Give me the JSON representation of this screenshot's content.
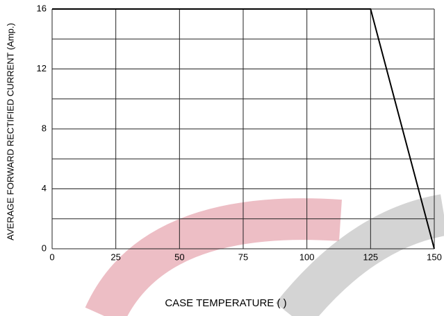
{
  "chart_data": {
    "type": "line",
    "x_label": "CASE TEMPERATURE (   )",
    "y_label": "AVERAGE FORWARD RECTIFIED CURRENT (Amp.)",
    "x": [
      0,
      125,
      150
    ],
    "series": [
      {
        "color": "#000000",
        "values": [
          16,
          16,
          0
        ]
      }
    ],
    "xlim": [
      0,
      150
    ],
    "xticks": [
      0,
      25,
      50,
      75,
      100,
      125,
      150
    ],
    "ylim": [
      0,
      16
    ],
    "yticks": [
      0,
      4,
      8,
      12,
      16
    ],
    "y_minor_ticks": [
      2,
      6,
      10,
      14
    ],
    "grid": true
  }
}
